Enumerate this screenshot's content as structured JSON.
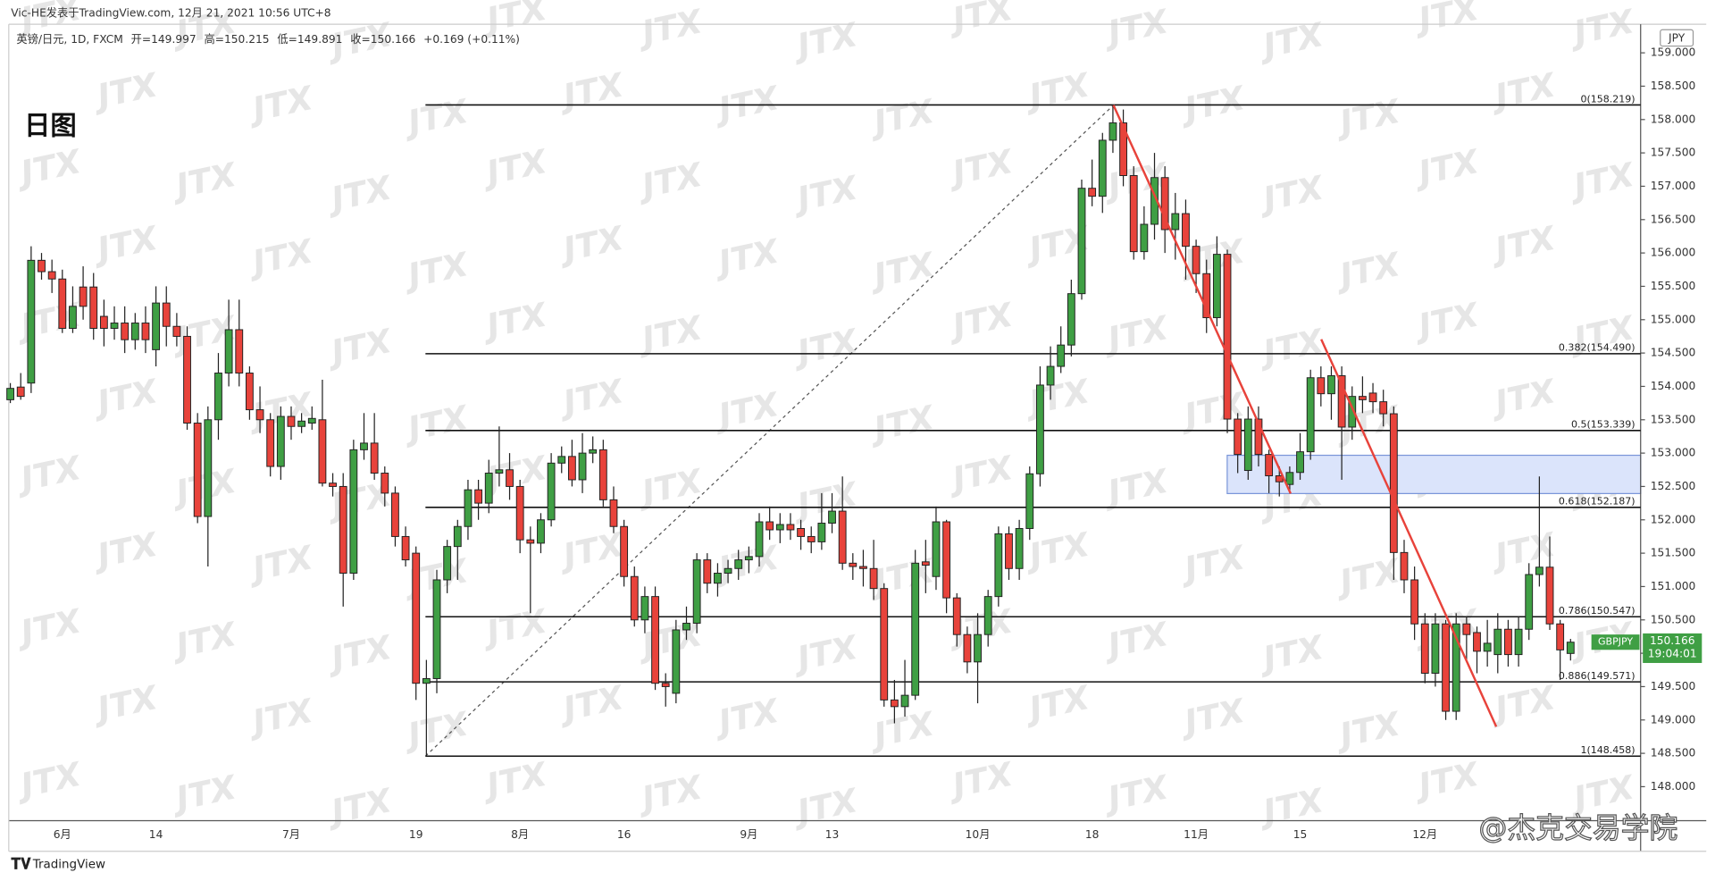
{
  "header": {
    "byline": "Vic-HE发表于TradingView.com, 12月 21, 2021 10:56 UTC+8",
    "symbol": "英镑/日元, 1D, FXCM",
    "open_label": "开=",
    "high_label": "高=",
    "low_label": "低=",
    "close_label": "收=",
    "change": "+0.169 (+0.11%)"
  },
  "chart_data": {
    "type": "candlestick",
    "title": "日图",
    "currency": "JPY",
    "symbol_tag": "GBPJPY",
    "countdown": "19:04:01",
    "watermark": "JTX",
    "footer_brand": "TradingView",
    "footer_credit": "@杰克交易学院",
    "up_color": "#3f9f44",
    "down_color": "#e8433b",
    "categories": [
      null,
      null,
      null,
      null,
      null,
      "6月",
      null,
      null,
      null,
      null,
      null,
      null,
      null,
      null,
      "14",
      null,
      null,
      null,
      null,
      null,
      null,
      null,
      null,
      null,
      null,
      null,
      null,
      "7月",
      null,
      null,
      null,
      null,
      null,
      null,
      null,
      null,
      null,
      null,
      null,
      "19",
      null,
      null,
      null,
      null,
      null,
      null,
      null,
      null,
      null,
      "8月",
      null,
      null,
      null,
      null,
      null,
      null,
      null,
      null,
      null,
      "16",
      null,
      null,
      null,
      null,
      null,
      null,
      null,
      null,
      null,
      null,
      null,
      "9月",
      null,
      null,
      null,
      null,
      null,
      null,
      null,
      "13",
      null,
      null,
      null,
      null,
      null,
      null,
      null,
      null,
      null,
      null,
      null,
      null,
      null,
      "10月",
      null,
      null,
      null,
      null,
      null,
      null,
      null,
      null,
      null,
      null,
      "18",
      null,
      null,
      null,
      null,
      null,
      null,
      null,
      null,
      null,
      "11月",
      null,
      null,
      null,
      null,
      null,
      null,
      null,
      null,
      null,
      "15",
      null,
      null,
      null,
      null,
      null,
      null,
      null,
      null,
      null,
      null,
      null,
      "12月",
      null,
      null,
      null,
      null,
      null,
      null,
      null,
      null,
      null,
      null,
      null,
      null,
      null,
      null
    ],
    "open": [
      153.8,
      153.99,
      154.05,
      155.89,
      155.72,
      155.61,
      154.87,
      155.49,
      155.49,
      155.05,
      154.87,
      154.95,
      154.7,
      154.95,
      154.55,
      155.25,
      154.9,
      154.75,
      153.45,
      152.05,
      153.5,
      154.2,
      154.85,
      154.2,
      153.65,
      153.5,
      152.8,
      153.55,
      153.4,
      153.45,
      153.5,
      152.55,
      152.5,
      151.2,
      153.05,
      153.15,
      152.7,
      152.4,
      151.75,
      151.5,
      149.55,
      149.62,
      151.1,
      151.6,
      151.9,
      152.45,
      152.25,
      152.7,
      152.75,
      152.5,
      151.7,
      151.65,
      152.0,
      152.85,
      152.95,
      152.6,
      153.0,
      153.05,
      152.3,
      151.9,
      151.15,
      150.5,
      150.85,
      149.55,
      149.4,
      150.35,
      150.45,
      151.4,
      151.05,
      151.2,
      151.27,
      151.4,
      151.45,
      151.97,
      151.85,
      151.93,
      151.87,
      151.75,
      151.67,
      151.95,
      152.13,
      151.35,
      151.3,
      151.27,
      150.97,
      149.3,
      149.2,
      149.37,
      151.37,
      151.15,
      151.97,
      150.83,
      150.28,
      149.87,
      150.28,
      150.85,
      151.79,
      151.27,
      151.87,
      152.69,
      154.02,
      154.3,
      154.62,
      155.39,
      156.97,
      156.85,
      157.69,
      157.95,
      157.16,
      156.02,
      156.43,
      157.13,
      156.35,
      156.59,
      156.1,
      155.69,
      155.03,
      155.98,
      153.51,
      152.74,
      153.51,
      152.98,
      152.66,
      152.53,
      152.71,
      153.02,
      154.13,
      153.89,
      154.16,
      153.39,
      153.85,
      153.9,
      153.77,
      153.59,
      151.51,
      151.1,
      150.44,
      149.7,
      150.44,
      149.13,
      150.44,
      150.31,
      150.03,
      149.98,
      150.36,
      149.98,
      150.36,
      151.18,
      151.29,
      150.44,
      149.997
    ],
    "high": [
      154.05,
      154.2,
      156.1,
      156.0,
      155.9,
      155.75,
      155.5,
      155.8,
      155.7,
      155.3,
      155.2,
      155.2,
      155.1,
      155.2,
      155.5,
      155.5,
      155.1,
      154.9,
      153.6,
      153.7,
      154.5,
      155.3,
      155.3,
      154.3,
      154.0,
      153.6,
      153.7,
      153.7,
      153.6,
      153.7,
      154.1,
      152.7,
      152.7,
      153.2,
      153.6,
      153.6,
      152.8,
      152.5,
      151.9,
      151.6,
      149.9,
      151.25,
      151.7,
      152.0,
      152.6,
      152.6,
      152.9,
      153.4,
      153.0,
      152.6,
      151.9,
      152.1,
      153.0,
      153.1,
      153.2,
      153.3,
      153.25,
      153.2,
      152.5,
      152.0,
      151.3,
      151.0,
      151.0,
      149.7,
      150.5,
      150.7,
      151.5,
      151.5,
      151.35,
      151.4,
      151.55,
      151.6,
      152.1,
      152.2,
      152.1,
      152.1,
      152.0,
      151.9,
      152.4,
      152.4,
      152.65,
      151.5,
      151.55,
      151.7,
      151.05,
      149.6,
      149.9,
      151.55,
      151.7,
      152.2,
      152.0,
      150.9,
      150.4,
      150.6,
      150.95,
      151.9,
      151.9,
      152.0,
      152.8,
      154.3,
      154.6,
      154.9,
      155.6,
      157.1,
      157.4,
      157.8,
      158.22,
      158.15,
      157.3,
      156.7,
      157.5,
      157.3,
      156.9,
      156.8,
      156.2,
      155.9,
      156.25,
      156.05,
      153.6,
      153.7,
      153.7,
      153.05,
      152.8,
      152.8,
      153.3,
      154.25,
      154.3,
      154.3,
      154.3,
      154.0,
      154.15,
      154.05,
      153.95,
      153.7,
      151.7,
      151.3,
      150.6,
      150.6,
      150.5,
      150.6,
      150.55,
      150.4,
      150.5,
      150.6,
      150.5,
      150.55,
      151.35,
      152.65,
      151.75,
      150.5,
      150.215
    ],
    "low": [
      153.75,
      153.8,
      153.9,
      155.6,
      155.4,
      154.8,
      154.8,
      155.0,
      154.7,
      154.6,
      154.7,
      154.5,
      154.55,
      154.5,
      154.3,
      154.6,
      154.6,
      153.35,
      151.95,
      151.3,
      153.2,
      154.0,
      154.0,
      153.5,
      153.3,
      152.65,
      152.6,
      153.2,
      153.3,
      153.35,
      152.5,
      152.35,
      150.7,
      151.1,
      152.9,
      152.6,
      152.2,
      151.6,
      151.3,
      149.3,
      148.46,
      149.4,
      150.9,
      151.1,
      151.7,
      152.0,
      152.1,
      152.5,
      152.3,
      151.5,
      150.6,
      151.5,
      151.9,
      152.7,
      152.5,
      152.4,
      152.85,
      152.2,
      151.8,
      151.0,
      150.4,
      150.3,
      149.45,
      149.2,
      149.25,
      150.2,
      150.3,
      150.9,
      150.85,
      151.05,
      151.1,
      151.2,
      151.3,
      151.7,
      151.65,
      151.7,
      151.55,
      151.5,
      151.55,
      151.8,
      151.25,
      151.1,
      151.0,
      150.8,
      149.2,
      148.95,
      149.05,
      149.3,
      150.9,
      150.95,
      150.6,
      150.1,
      149.7,
      149.25,
      150.1,
      150.7,
      151.1,
      151.1,
      151.7,
      152.5,
      153.8,
      154.2,
      154.45,
      155.3,
      156.7,
      156.6,
      157.5,
      157.0,
      155.9,
      155.9,
      156.2,
      156.0,
      155.9,
      155.6,
      155.4,
      154.8,
      154.9,
      153.3,
      152.7,
      152.6,
      152.8,
      152.4,
      152.35,
      152.4,
      152.6,
      152.9,
      153.7,
      153.5,
      152.6,
      153.2,
      153.6,
      153.6,
      153.4,
      151.1,
      150.9,
      150.2,
      149.55,
      149.5,
      149.0,
      149.0,
      149.9,
      149.7,
      149.8,
      149.7,
      149.8,
      149.8,
      150.2,
      151.0,
      150.35,
      149.6,
      149.891
    ],
    "close": [
      153.97,
      153.85,
      155.89,
      155.72,
      155.61,
      154.87,
      155.2,
      155.2,
      154.87,
      154.87,
      154.95,
      154.7,
      154.95,
      154.7,
      155.25,
      154.9,
      154.75,
      153.45,
      152.05,
      153.5,
      154.2,
      154.85,
      154.2,
      153.65,
      153.5,
      152.8,
      153.55,
      153.4,
      153.48,
      153.52,
      152.55,
      152.5,
      151.2,
      153.05,
      153.15,
      152.7,
      152.4,
      151.75,
      151.4,
      149.55,
      149.62,
      151.1,
      151.6,
      151.9,
      152.45,
      152.25,
      152.7,
      152.75,
      152.5,
      151.7,
      151.65,
      152.0,
      152.85,
      152.95,
      152.6,
      153.0,
      153.05,
      152.3,
      151.9,
      151.15,
      150.5,
      150.85,
      149.55,
      149.5,
      150.35,
      150.45,
      151.4,
      151.05,
      151.2,
      151.27,
      151.4,
      151.45,
      151.97,
      151.85,
      151.93,
      151.85,
      151.75,
      151.67,
      151.95,
      152.13,
      151.35,
      151.3,
      151.27,
      150.97,
      149.3,
      149.2,
      149.37,
      151.35,
      151.32,
      151.97,
      150.83,
      150.28,
      149.87,
      150.28,
      150.85,
      151.79,
      151.27,
      151.87,
      152.69,
      154.02,
      154.3,
      154.62,
      155.39,
      156.97,
      156.85,
      157.69,
      157.95,
      157.16,
      156.02,
      156.43,
      157.13,
      156.35,
      156.59,
      156.1,
      155.69,
      155.03,
      155.98,
      153.51,
      152.98,
      153.51,
      152.98,
      152.66,
      152.57,
      152.71,
      153.02,
      154.13,
      153.89,
      154.16,
      153.39,
      153.85,
      153.8,
      153.77,
      153.59,
      151.51,
      151.1,
      150.44,
      149.7,
      150.44,
      149.13,
      150.44,
      150.28,
      150.03,
      150.15,
      150.36,
      149.98,
      150.36,
      151.18,
      151.29,
      150.44,
      150.05,
      150.166
    ],
    "ylim": [
      147.49,
      159.38
    ],
    "yticks": [
      {
        "value": 148,
        "label": "148.000"
      },
      {
        "value": 148.5,
        "label": "148.500"
      },
      {
        "value": 149,
        "label": "149.000"
      },
      {
        "value": 149.5,
        "label": "149.500"
      },
      {
        "value": 150,
        "label": "150.000"
      },
      {
        "value": 150.5,
        "label": "150.500"
      },
      {
        "value": 151,
        "label": "151.000"
      },
      {
        "value": 151.5,
        "label": "151.500"
      },
      {
        "value": 152,
        "label": "152.000"
      },
      {
        "value": 152.5,
        "label": "152.500"
      },
      {
        "value": 153,
        "label": "153.000"
      },
      {
        "value": 153.5,
        "label": "153.500"
      },
      {
        "value": 154,
        "label": "154.000"
      },
      {
        "value": 154.5,
        "label": "154.500"
      },
      {
        "value": 155,
        "label": "155.000"
      },
      {
        "value": 155.5,
        "label": "155.500"
      },
      {
        "value": 156,
        "label": "156.000"
      },
      {
        "value": 156.5,
        "label": "156.500"
      },
      {
        "value": 157,
        "label": "157.000"
      },
      {
        "value": 157.5,
        "label": "157.500"
      },
      {
        "value": 158,
        "label": "158.000"
      },
      {
        "value": 158.5,
        "label": "158.500"
      },
      {
        "value": 159,
        "label": "159.000"
      }
    ],
    "fib": [
      {
        "value": 158.219,
        "label": "0(158.219)"
      },
      {
        "value": 154.49,
        "label": "0.382(154.490)"
      },
      {
        "value": 153.339,
        "label": "0.5(153.339)"
      },
      {
        "value": 152.187,
        "label": "0.618(152.187)"
      },
      {
        "value": 150.547,
        "label": "0.786(150.547)"
      },
      {
        "value": 149.571,
        "label": "0.886(149.571)"
      },
      {
        "value": 148.458,
        "label": "1(148.458)"
      }
    ],
    "grid": false
  }
}
